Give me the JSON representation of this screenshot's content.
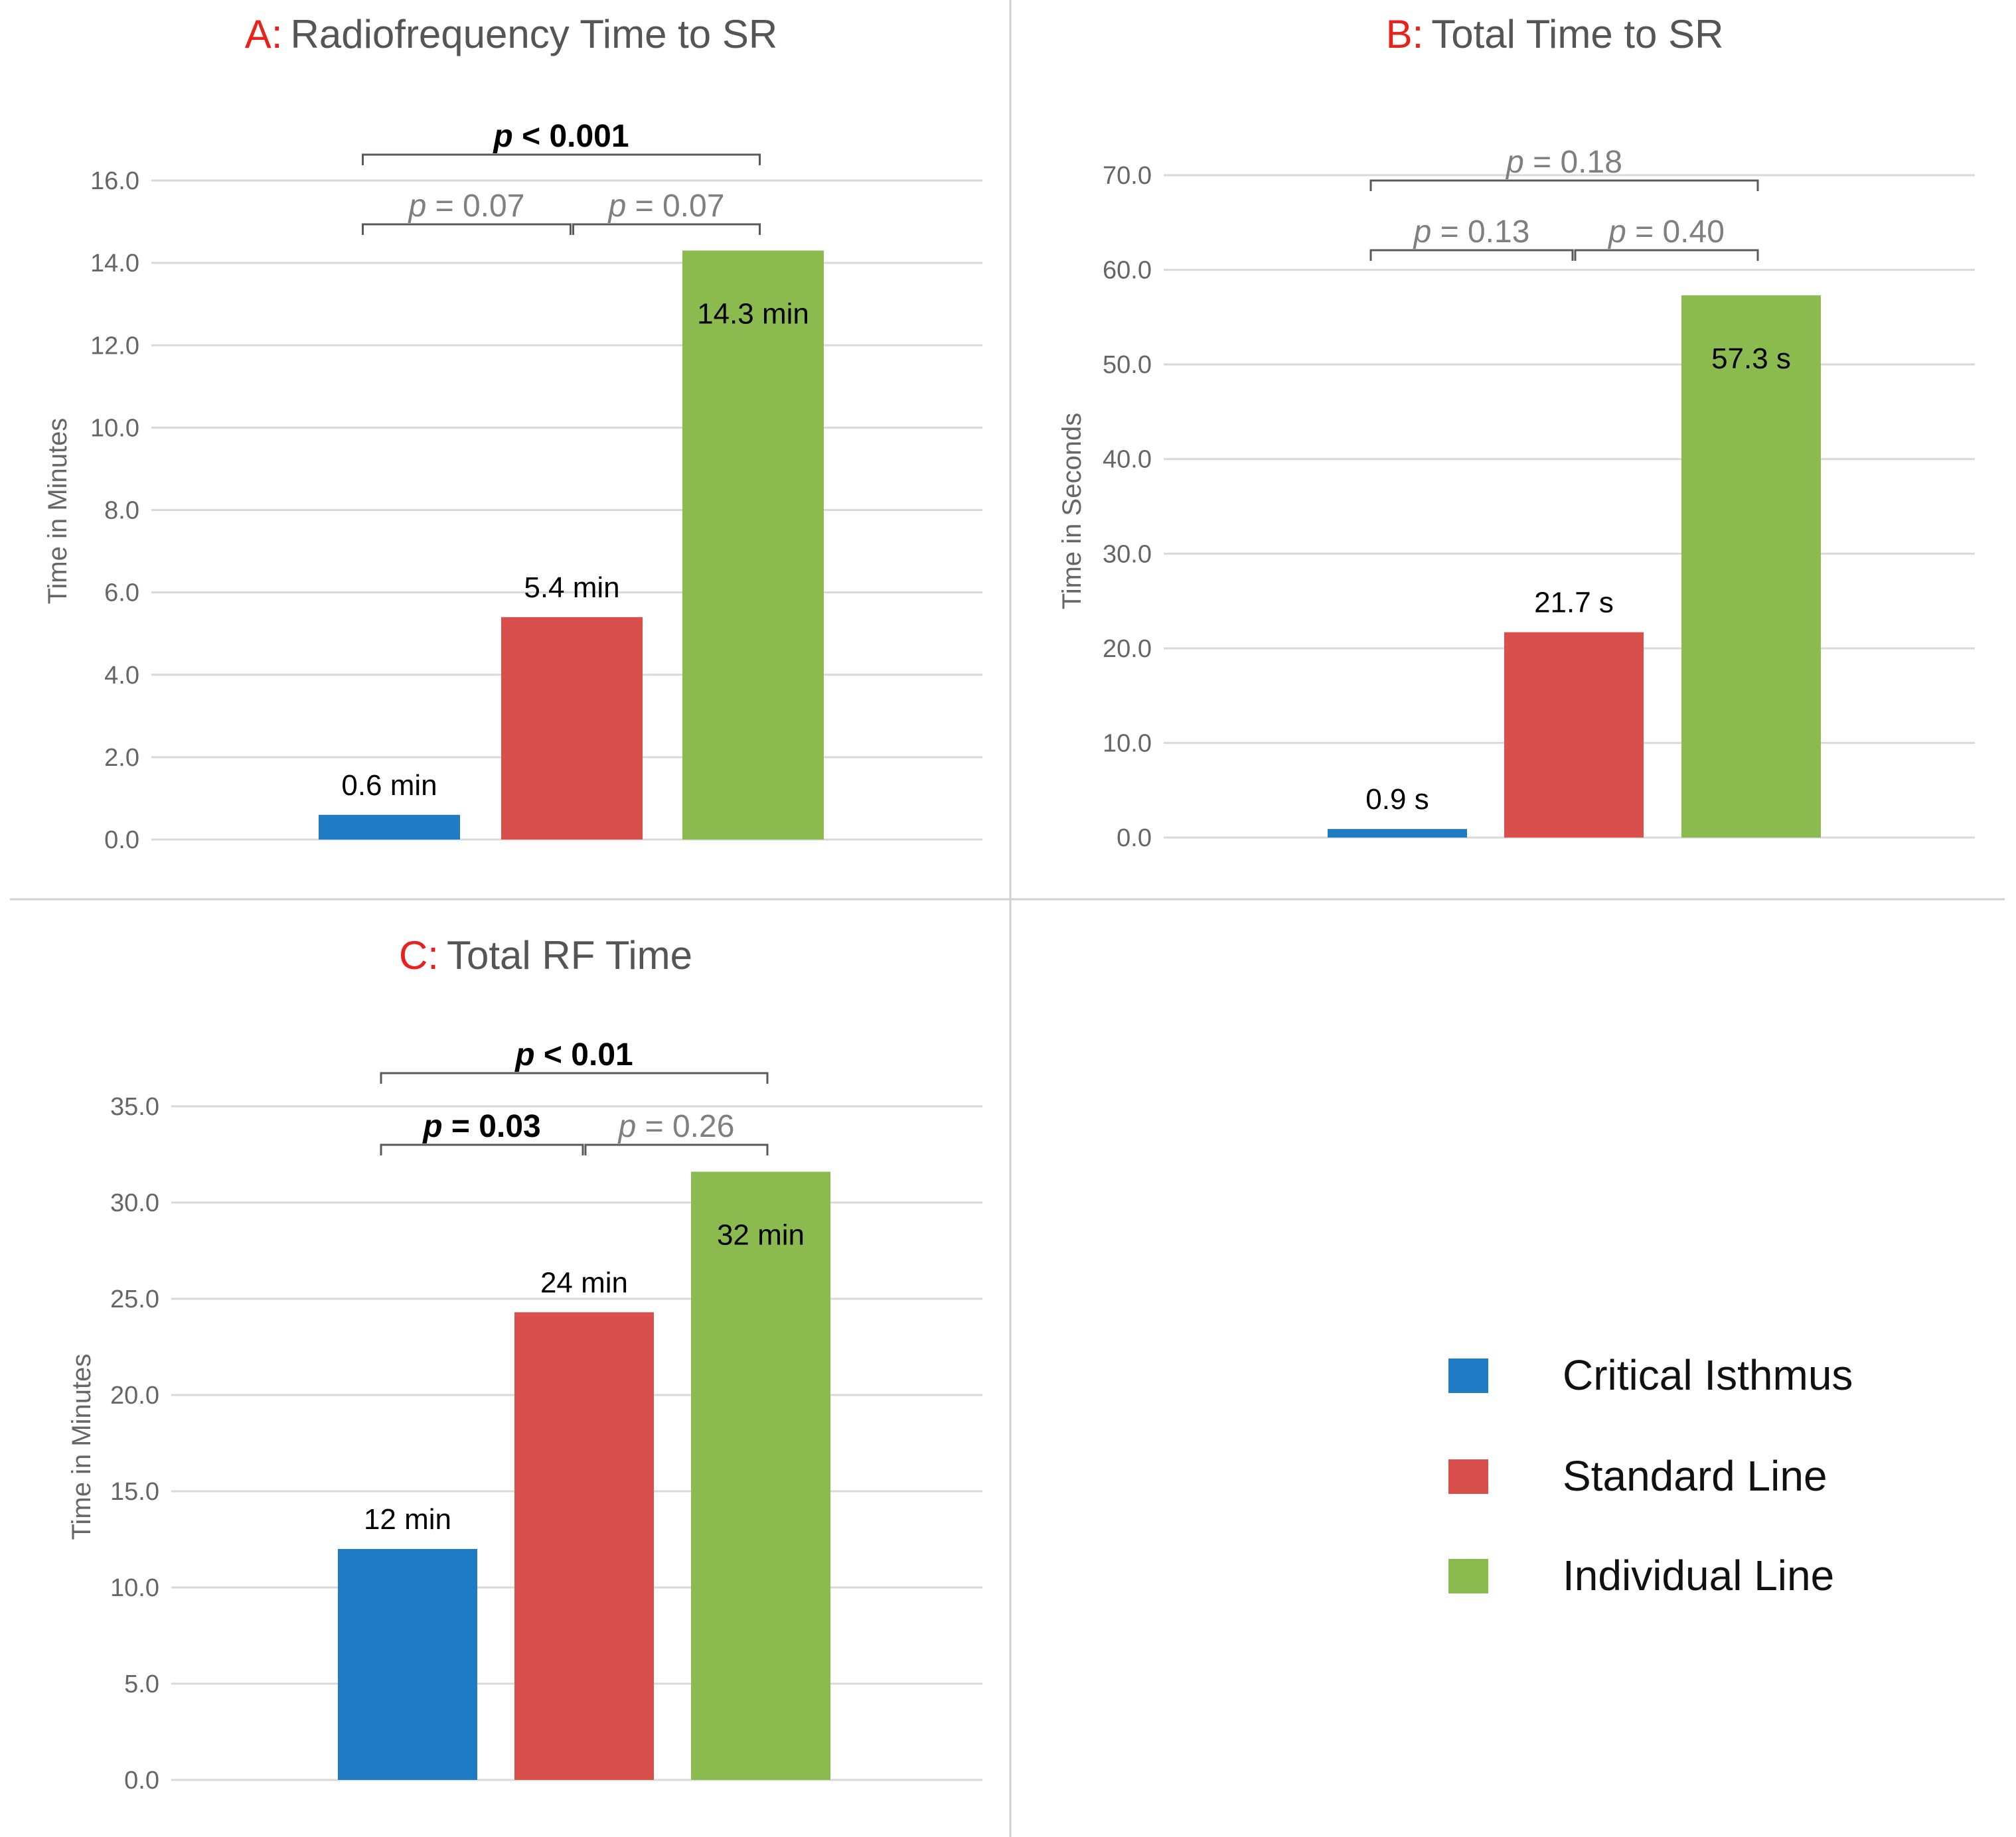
{
  "colors": {
    "critical": "#1f7bc4",
    "standard": "#d94f4c",
    "individual": "#8bbb4e",
    "letter": "#e8211c",
    "title": "#555555",
    "grid": "#d9d9d9",
    "tick": "#666666",
    "sig": "#000000",
    "nonsig": "#7f7f7f",
    "bracket": "#595959",
    "divider": "#d0d0d0"
  },
  "legend": {
    "items": [
      {
        "label": "Critical Isthmus",
        "color_key": "critical"
      },
      {
        "label": "Standard Line",
        "color_key": "standard"
      },
      {
        "label": "Individual Line",
        "color_key": "individual"
      }
    ]
  },
  "chart_data": [
    {
      "id": "A",
      "type": "bar",
      "panel_letter": "A:",
      "title": "Radiofrequency Time to SR",
      "ylabel": "Time in Minutes",
      "xlabel": "",
      "ylim": [
        0,
        16
      ],
      "yticks": [
        "0.0",
        "2.0",
        "4.0",
        "6.0",
        "8.0",
        "10.0",
        "12.0",
        "14.0",
        "16.0"
      ],
      "categories": [
        "Critical Isthmus",
        "Standard Line",
        "Individual Line"
      ],
      "values": [
        0.6,
        5.4,
        14.3
      ],
      "value_labels": [
        "0.6 min",
        "5.4 min",
        "14.3 min"
      ],
      "label_inside": [
        false,
        false,
        true
      ],
      "comparisons": [
        {
          "from": 0,
          "to": 2,
          "p": "p",
          "rest": " < 0.001",
          "significant": true,
          "level": 2
        },
        {
          "from": 0,
          "to": 1,
          "p": "p",
          "rest": " = 0.07",
          "significant": false,
          "level": 1
        },
        {
          "from": 1,
          "to": 2,
          "p": "p",
          "rest": " = 0.07",
          "significant": false,
          "level": 1
        }
      ]
    },
    {
      "id": "B",
      "type": "bar",
      "panel_letter": "B:",
      "title": "Total Time to SR",
      "ylabel": "Time in Seconds",
      "xlabel": "",
      "ylim": [
        0,
        70
      ],
      "yticks": [
        "0.0",
        "10.0",
        "20.0",
        "30.0",
        "40.0",
        "50.0",
        "60.0",
        "70.0"
      ],
      "categories": [
        "Critical Isthmus",
        "Standard Line",
        "Individual Line"
      ],
      "values": [
        0.9,
        21.7,
        57.3
      ],
      "value_labels": [
        "0.9 s",
        "21.7 s",
        "57.3 s"
      ],
      "label_inside": [
        false,
        false,
        true
      ],
      "comparisons": [
        {
          "from": 0,
          "to": 2,
          "p": "p",
          "rest": " = 0.18",
          "significant": false,
          "level": 2
        },
        {
          "from": 0,
          "to": 1,
          "p": "p",
          "rest": " = 0.13",
          "significant": false,
          "level": 1
        },
        {
          "from": 1,
          "to": 2,
          "p": "p",
          "rest": " = 0.40",
          "significant": false,
          "level": 1
        }
      ]
    },
    {
      "id": "C",
      "type": "bar",
      "panel_letter": "C:",
      "title": "Total RF Time",
      "ylabel": "Time in Minutes",
      "xlabel": "",
      "ylim": [
        0,
        35
      ],
      "yticks": [
        "0.0",
        "5.0",
        "10.0",
        "15.0",
        "20.0",
        "25.0",
        "30.0",
        "35.0"
      ],
      "categories": [
        "Critical Isthmus",
        "Standard Line",
        "Individual Line"
      ],
      "values": [
        12,
        24.3,
        31.6
      ],
      "value_labels": [
        "12 min",
        "24 min",
        "32 min"
      ],
      "label_inside": [
        false,
        false,
        true
      ],
      "comparisons": [
        {
          "from": 0,
          "to": 2,
          "p": "p",
          "rest": " < 0.01",
          "significant": true,
          "level": 2
        },
        {
          "from": 0,
          "to": 1,
          "p": "p",
          "rest": " = 0.03",
          "significant": true,
          "level": 1
        },
        {
          "from": 1,
          "to": 2,
          "p": "p",
          "rest": " = 0.26",
          "significant": false,
          "level": 1
        }
      ]
    }
  ]
}
